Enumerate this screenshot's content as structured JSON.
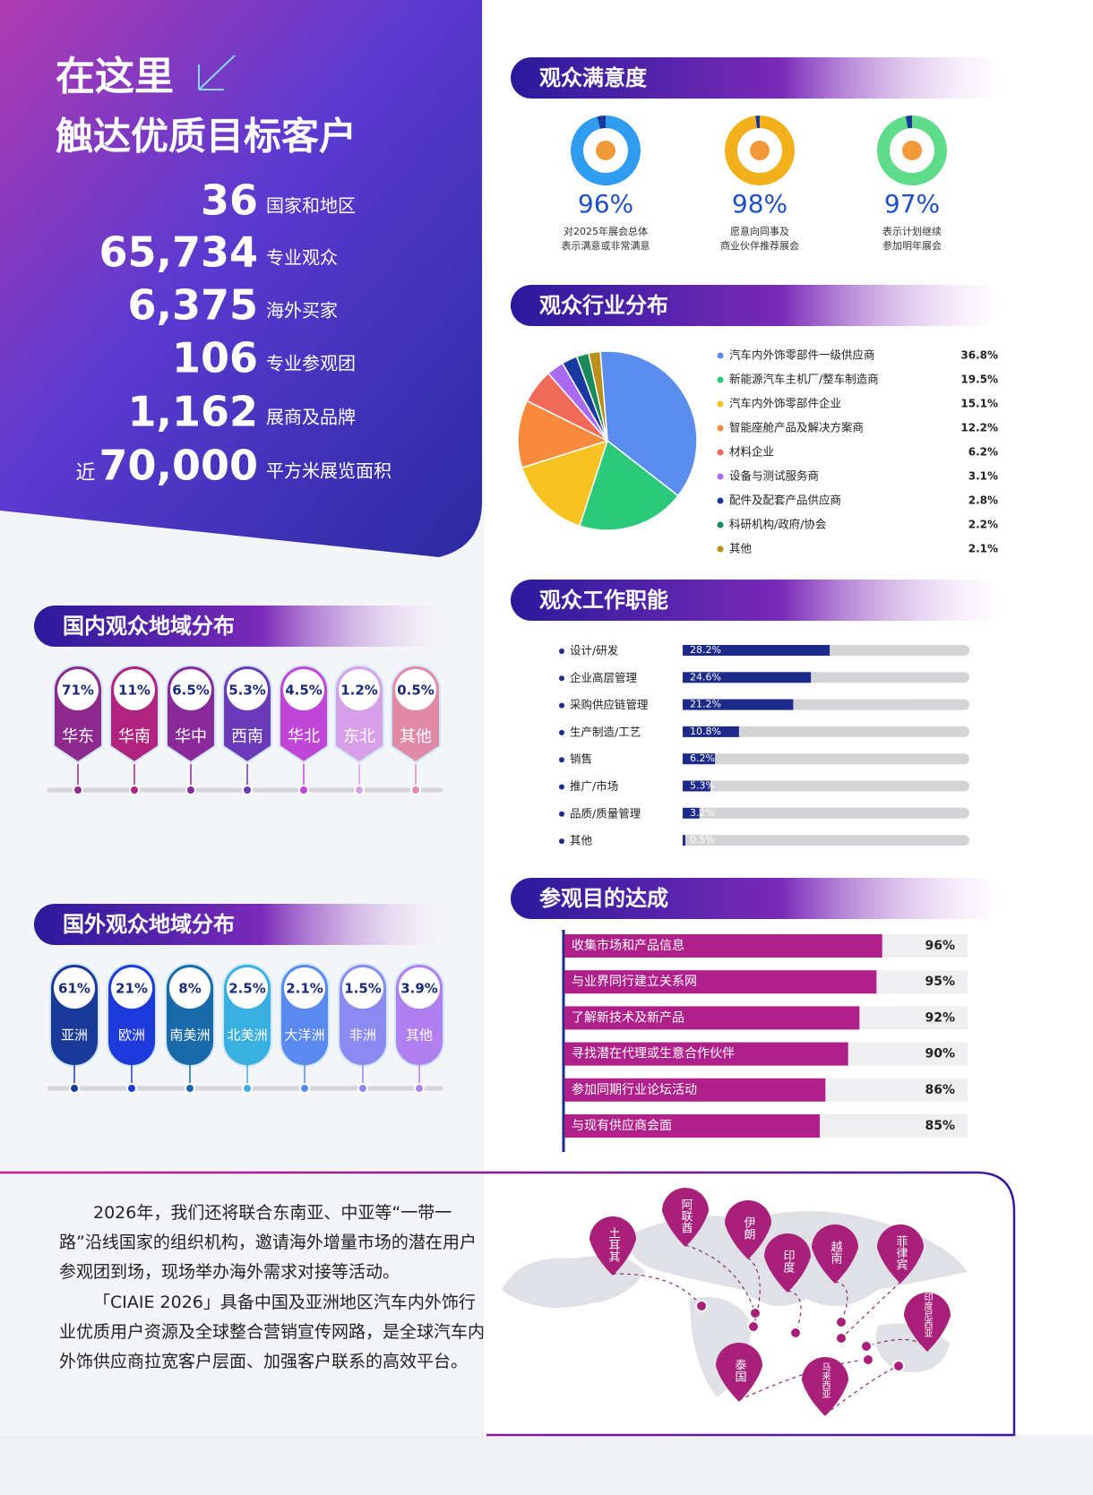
{
  "hero": {
    "title_line1": "在这里",
    "title_line2": "触达优质目标客户",
    "stats": [
      {
        "number": "36",
        "label": "国家和地区"
      },
      {
        "number": "65,734",
        "label": "专业观众"
      },
      {
        "number": "6,375",
        "label": "海外买家"
      },
      {
        "number": "106",
        "label": "专业参观团"
      },
      {
        "number": "1,162",
        "label": "展商及品牌"
      },
      {
        "prefix": "近",
        "number": "70,000",
        "label": "平方米展览面积"
      }
    ]
  },
  "satisfaction": {
    "title": "观众满意度",
    "items": [
      {
        "value": 96,
        "value_label": "96%",
        "color": "#2f9cf0",
        "desc": [
          "对2025年展会总体",
          "表示满意或非常满意"
        ]
      },
      {
        "value": 98,
        "value_label": "98%",
        "color": "#f2b11c",
        "desc": [
          "愿意向同事及",
          "商业伙伴推荐展会"
        ]
      },
      {
        "value": 97,
        "value_label": "97%",
        "color": "#5fdc8a",
        "desc": [
          "表示计划继续",
          "参加明年展会"
        ]
      }
    ]
  },
  "industry": {
    "title": "观众行业分布",
    "type": "pie",
    "categories": [
      "汽车内外饰零部件一级供应商",
      "新能源汽车主机厂/整车制造商",
      "汽车内外饰零部件企业",
      "智能座舱产品及解决方案商",
      "材料企业",
      "设备与测试服务商",
      "配件及配套产品供应商",
      "科研机构/政府/协会",
      "其他"
    ],
    "values": [
      36.8,
      19.5,
      15.1,
      12.2,
      6.2,
      3.1,
      2.8,
      2.2,
      2.1
    ],
    "value_labels": [
      "36.8%",
      "19.5%",
      "15.1%",
      "12.2%",
      "6.2%",
      "3.1%",
      "2.8%",
      "2.2%",
      "2.1%"
    ],
    "colors": [
      "#5b8def",
      "#2bc97a",
      "#f7c322",
      "#f78a3c",
      "#f06a5a",
      "#a86af0",
      "#1a3aa0",
      "#1a8a5a",
      "#b8901a"
    ]
  },
  "jobs": {
    "title": "观众工作职能",
    "type": "bar",
    "xlim": [
      0,
      55
    ],
    "color": "#1c2a8a",
    "categories": [
      "设计/研发",
      "企业高层管理",
      "采购供应链管理",
      "生产制造/工艺",
      "销售",
      "推广/市场",
      "品质/质量管理",
      "其他"
    ],
    "values": [
      28.2,
      24.6,
      21.2,
      10.8,
      6.2,
      5.3,
      3.2,
      0.5
    ],
    "value_labels": [
      "28.2%",
      "24.6%",
      "21.2%",
      "10.8%",
      "6.2%",
      "5.3%",
      "3.2%",
      "0.5%"
    ]
  },
  "goals": {
    "title": "参观目的达成",
    "type": "bar",
    "xlim": [
      40,
      100
    ],
    "color": "#b0208a",
    "categories": [
      "收集市场和产品信息",
      "与业界同行建立关系网",
      "了解新技术及新产品",
      "寻找潜在代理或生意合作伙伴",
      "参加同期行业论坛活动",
      "与现有供应商会面"
    ],
    "values": [
      96,
      95,
      92,
      90,
      86,
      85
    ],
    "value_labels": [
      "96%",
      "95%",
      "92%",
      "90%",
      "86%",
      "85%"
    ]
  },
  "domestic": {
    "title": "国内观众地域分布",
    "categories": [
      "华东",
      "华南",
      "华中",
      "西南",
      "华北",
      "东北",
      "其他"
    ],
    "value_labels": [
      "71%",
      "11%",
      "6.5%",
      "5.3%",
      "4.5%",
      "1.2%",
      "0.5%"
    ],
    "colors": [
      "#8e2a8e",
      "#b0237e",
      "#8a2a9a",
      "#6a3ab8",
      "#c046d8",
      "#d8a0e8",
      "#e08aa8"
    ]
  },
  "overseas": {
    "title": "国外观众地域分布",
    "categories": [
      "亚洲",
      "欧洲",
      "南美洲",
      "北美洲",
      "大洋洲",
      "非洲",
      "其他"
    ],
    "value_labels": [
      "61%",
      "21%",
      "8%",
      "2.5%",
      "2.1%",
      "1.5%",
      "3.9%"
    ],
    "colors": [
      "#1a3a9a",
      "#1f3adb",
      "#1a6aaa",
      "#3ab0e0",
      "#5a8af0",
      "#8a8af0",
      "#b080f0"
    ]
  },
  "bottom": {
    "paragraphs": [
      "2026年，我们还将联合东南亚、中亚等“一带一路”沿线国家的组织机构，邀请海外增量市场的潜在用户参观团到场，现场举办海外需求对接等活动。",
      "「CIAIE 2026」具备中国及亚洲地区汽车内外饰行业优质用户资源及全球整合营销宣传网路，是全球汽车内外饰供应商拉宽客户层面、加强客户联系的高效平台。"
    ],
    "map_pins": [
      "土耳其",
      "阿联酋",
      "伊朗",
      "印度",
      "越南",
      "菲律宾",
      "印度尼西亚",
      "泰国",
      "马来西亚"
    ]
  }
}
